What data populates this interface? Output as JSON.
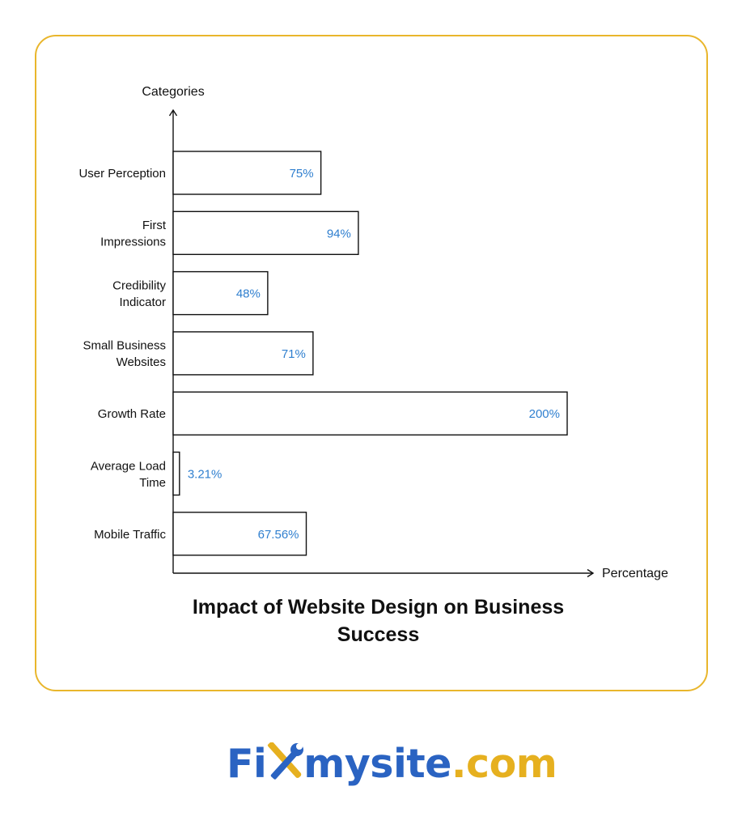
{
  "chart_data": {
    "type": "bar",
    "orientation": "horizontal",
    "title": "Impact of Website Design on Business Success",
    "xlabel": "Percentage",
    "ylabel": "Categories",
    "categories": [
      "User Perception",
      "First Impressions",
      "Credibility Indicator",
      "Small Business Websites",
      "Growth Rate",
      "Average Load Time",
      "Mobile Traffic"
    ],
    "category_lines": [
      [
        "User Perception"
      ],
      [
        "First",
        "Impressions"
      ],
      [
        "Credibility",
        "Indicator"
      ],
      [
        "Small Business",
        "Websites"
      ],
      [
        "Growth Rate"
      ],
      [
        "Average Load",
        "Time"
      ],
      [
        "Mobile Traffic"
      ]
    ],
    "values": [
      75,
      94,
      48,
      71,
      200,
      3.21,
      67.56
    ],
    "value_labels": [
      "75%",
      "94%",
      "48%",
      "71%",
      "200%",
      "3.21%",
      "67.56%"
    ],
    "xlim": [
      0,
      200
    ],
    "grid": false,
    "legend": "none",
    "colors": {
      "bar_fill": "#ffffff",
      "bar_stroke": "#111111",
      "value_label": "#2f7fcf",
      "axis": "#111111"
    }
  },
  "card": {
    "border_color": "#e9b62c"
  },
  "logo": {
    "part1": "Fi",
    "icon": "wrench-screwdriver-icon",
    "part2": "mysite",
    "part3": ".com",
    "blue": "#2a63c2",
    "gold": "#e6b01f"
  }
}
